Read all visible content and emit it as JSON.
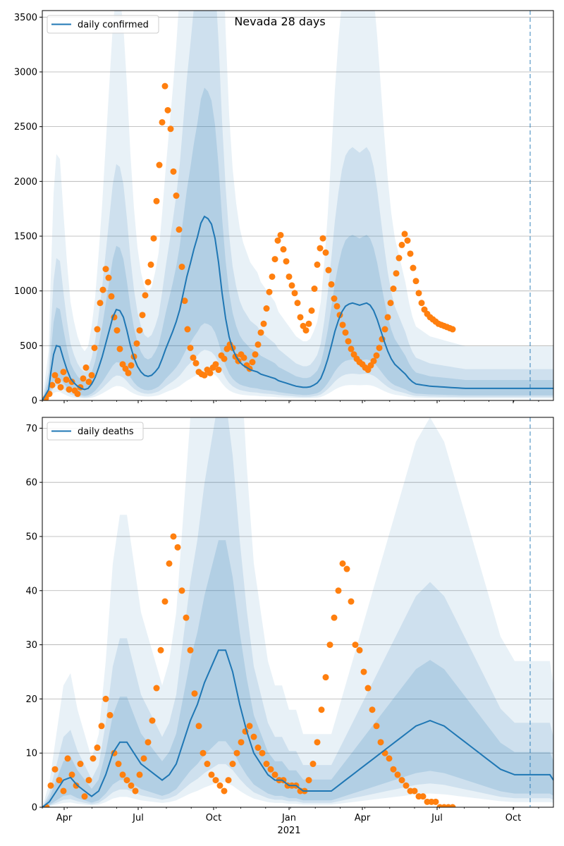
{
  "chart_data": [
    {
      "type": "line",
      "title": "Nevada 28 days",
      "legend": {
        "label": "daily confirmed",
        "position": "top-left"
      },
      "ylim": [
        0,
        3560
      ],
      "yticks": [
        0,
        500,
        1000,
        1500,
        2000,
        2500,
        3000,
        3500
      ],
      "grid": true,
      "colors": {
        "line": "#1f77b4",
        "points": "#ff7f0e",
        "band": "#1f77b4"
      },
      "series": [
        {
          "name": "daily confirmed",
          "x": [
            0,
            9,
            12,
            16,
            20,
            25,
            30,
            35,
            40,
            45,
            50,
            55,
            60,
            65,
            70,
            75,
            80,
            85,
            90,
            95,
            100,
            105,
            110,
            115,
            120,
            125,
            130,
            135,
            140,
            145,
            150,
            155,
            160,
            165,
            170,
            175,
            180,
            185,
            190,
            195,
            200,
            205,
            210,
            215,
            220,
            225,
            230,
            235,
            240,
            245,
            250,
            255,
            260,
            265,
            270,
            275,
            280,
            285,
            290,
            295,
            300,
            305,
            310,
            315,
            320,
            325,
            330,
            335,
            340,
            345,
            350,
            355,
            360,
            365,
            370,
            375,
            380,
            385,
            390,
            395,
            400,
            405,
            410,
            415,
            420,
            425,
            430,
            435,
            440,
            445,
            450,
            455,
            460,
            465,
            470,
            475,
            480,
            485,
            490,
            495,
            500,
            505,
            510,
            515,
            520,
            525,
            530,
            535,
            540,
            545,
            550,
            555,
            560,
            565,
            570,
            575,
            580,
            585,
            590,
            595,
            600,
            605,
            610,
            615,
            620,
            625,
            630,
            635,
            640,
            645,
            650,
            655,
            660,
            665,
            670,
            675,
            680,
            685,
            690,
            695,
            700,
            705,
            710,
            715,
            720,
            725
          ],
          "values": [
            0,
            100,
            250,
            420,
            500,
            490,
            380,
            280,
            200,
            160,
            130,
            110,
            100,
            110,
            150,
            210,
            300,
            400,
            520,
            640,
            760,
            830,
            820,
            760,
            640,
            500,
            390,
            310,
            260,
            230,
            220,
            230,
            260,
            300,
            380,
            470,
            550,
            630,
            720,
            830,
            980,
            1130,
            1250,
            1380,
            1490,
            1620,
            1680,
            1660,
            1610,
            1480,
            1260,
            980,
            750,
            580,
            470,
            400,
            350,
            320,
            300,
            280,
            270,
            260,
            240,
            230,
            220,
            210,
            200,
            180,
            170,
            160,
            150,
            140,
            130,
            125,
            120,
            120,
            125,
            140,
            160,
            200,
            280,
            380,
            500,
            630,
            730,
            810,
            860,
            880,
            890,
            880,
            870,
            880,
            890,
            870,
            820,
            740,
            640,
            540,
            450,
            380,
            330,
            300,
            270,
            240,
            200,
            170,
            150,
            145,
            140,
            135,
            130,
            128,
            126,
            124,
            122,
            120,
            118,
            116,
            114,
            112,
            110,
            110,
            110,
            110,
            110,
            110,
            110,
            110,
            110,
            110,
            110,
            110,
            110,
            110,
            110,
            110,
            110,
            110,
            110,
            110,
            110,
            110,
            110,
            110,
            110,
            110
          ]
        },
        {
          "name": "",
          "type": "scatter",
          "x": [
            5,
            10,
            14,
            18,
            22,
            26,
            30,
            34,
            38,
            42,
            46,
            50,
            54,
            58,
            62,
            66,
            70,
            74,
            78,
            82,
            86,
            90,
            94,
            98,
            102,
            106,
            110,
            114,
            118,
            122,
            126,
            130,
            134,
            138,
            142,
            146,
            150,
            154,
            158,
            162,
            166,
            170,
            174,
            178,
            182,
            186,
            190,
            194,
            198,
            202,
            206,
            210,
            214,
            218,
            222,
            226,
            230,
            234,
            238,
            242,
            246,
            250,
            254,
            258,
            262,
            266,
            270,
            274,
            278,
            282,
            286,
            290,
            294,
            298,
            302,
            306,
            310,
            314,
            318,
            322,
            326,
            330,
            334,
            338,
            342,
            346,
            350,
            354,
            358,
            362,
            366,
            370,
            374,
            378,
            382,
            386,
            390,
            394,
            398,
            402,
            406,
            410,
            414,
            418,
            422,
            426,
            430,
            434,
            438,
            442,
            446,
            450,
            454,
            458,
            462,
            466,
            470,
            474,
            478,
            482,
            486,
            490,
            494,
            498,
            502,
            506,
            510,
            514,
            518,
            522,
            526,
            530,
            534,
            538,
            542,
            546,
            550,
            554,
            558,
            562,
            566,
            570,
            574,
            578,
            582
          ],
          "values": [
            20,
            60,
            140,
            230,
            180,
            120,
            260,
            190,
            100,
            170,
            90,
            60,
            120,
            200,
            300,
            170,
            230,
            480,
            650,
            890,
            1010,
            1200,
            1120,
            950,
            760,
            640,
            470,
            330,
            290,
            250,
            320,
            400,
            520,
            640,
            780,
            960,
            1080,
            1240,
            1480,
            1820,
            2150,
            2540,
            2870,
            2650,
            2480,
            2090,
            1870,
            1560,
            1220,
            910,
            650,
            480,
            390,
            340,
            260,
            240,
            230,
            280,
            250,
            300,
            330,
            280,
            410,
            380,
            470,
            510,
            480,
            400,
            360,
            420,
            390,
            320,
            290,
            350,
            420,
            510,
            620,
            700,
            840,
            990,
            1130,
            1290,
            1460,
            1510,
            1380,
            1270,
            1130,
            1050,
            980,
            890,
            760,
            680,
            640,
            700,
            820,
            1020,
            1240,
            1390,
            1480,
            1350,
            1190,
            1060,
            930,
            860,
            780,
            690,
            620,
            540,
            470,
            420,
            380,
            350,
            330,
            300,
            280,
            320,
            360,
            410,
            480,
            560,
            650,
            760,
            890,
            1020,
            1160,
            1300,
            1420,
            1520,
            1460,
            1340,
            1210,
            1090,
            980,
            890,
            830,
            790,
            760,
            740,
            720,
            700,
            690,
            680,
            670,
            660,
            650
          ]
        }
      ]
    },
    {
      "type": "line",
      "legend": {
        "label": "daily deaths",
        "position": "top-left"
      },
      "ylim": [
        0,
        72
      ],
      "yticks": [
        0,
        10,
        20,
        30,
        40,
        50,
        60,
        70
      ],
      "grid": true,
      "xlabel": "2021",
      "xticks": [
        "Apr",
        "Jul",
        "Oct",
        "Jan",
        "Apr",
        "Jul",
        "Oct"
      ],
      "colors": {
        "line": "#1f77b4",
        "points": "#ff7f0e",
        "band": "#1f77b4"
      },
      "series": [
        {
          "name": "daily deaths",
          "x": [
            0,
            10,
            20,
            30,
            40,
            50,
            60,
            70,
            80,
            90,
            100,
            110,
            120,
            130,
            140,
            150,
            160,
            170,
            180,
            190,
            200,
            210,
            220,
            230,
            240,
            250,
            260,
            270,
            280,
            290,
            300,
            310,
            320,
            330,
            340,
            350,
            360,
            370,
            380,
            390,
            400,
            410,
            420,
            430,
            440,
            450,
            460,
            470,
            480,
            490,
            500,
            510,
            520,
            530,
            540,
            550,
            560,
            570,
            580,
            590,
            600,
            610,
            620,
            630,
            640,
            650,
            660,
            670,
            680,
            690,
            700,
            710,
            720,
            725
          ],
          "values": [
            0,
            1,
            3,
            5,
            5.5,
            4,
            3,
            2,
            3,
            6,
            10,
            12,
            12,
            10,
            8,
            7,
            6,
            5,
            6,
            8,
            12,
            16,
            19,
            23,
            26,
            29,
            29,
            25,
            19,
            14,
            10,
            8,
            6,
            5,
            5,
            4,
            4,
            3,
            3,
            3,
            3,
            3,
            4,
            5,
            6,
            7,
            8,
            9,
            10,
            11,
            12,
            13,
            14,
            15,
            15.5,
            16,
            15.5,
            15,
            14,
            13,
            12,
            11,
            10,
            9,
            8,
            7,
            6.5,
            6,
            6,
            6,
            6,
            6,
            6,
            5
          ]
        },
        {
          "name": "",
          "type": "scatter",
          "x": [
            6,
            12,
            18,
            24,
            30,
            36,
            42,
            48,
            54,
            60,
            66,
            72,
            78,
            84,
            90,
            96,
            102,
            108,
            114,
            120,
            126,
            132,
            138,
            144,
            150,
            156,
            162,
            168,
            174,
            180,
            186,
            192,
            198,
            204,
            210,
            216,
            222,
            228,
            234,
            240,
            246,
            252,
            258,
            264,
            270,
            276,
            282,
            288,
            294,
            300,
            306,
            312,
            318,
            324,
            330,
            336,
            342,
            348,
            354,
            360,
            366,
            372,
            378,
            384,
            390,
            396,
            402,
            408,
            414,
            420,
            426,
            432,
            438,
            444,
            450,
            456,
            462,
            468,
            474,
            480,
            486,
            492,
            498,
            504,
            510,
            516,
            522,
            528,
            534,
            540,
            546,
            552,
            558,
            564,
            570,
            576,
            582
          ],
          "values": [
            0,
            4,
            7,
            5,
            3,
            9,
            6,
            4,
            8,
            2,
            5,
            9,
            11,
            15,
            20,
            17,
            10,
            8,
            6,
            5,
            4,
            3,
            6,
            9,
            12,
            16,
            22,
            29,
            38,
            45,
            50,
            48,
            40,
            35,
            29,
            21,
            15,
            10,
            8,
            6,
            5,
            4,
            3,
            5,
            8,
            10,
            12,
            14,
            15,
            13,
            11,
            10,
            8,
            7,
            6,
            5,
            5,
            4,
            4,
            4,
            3,
            3,
            5,
            8,
            12,
            18,
            24,
            30,
            35,
            40,
            45,
            44,
            38,
            30,
            29,
            25,
            22,
            18,
            15,
            12,
            10,
            9,
            7,
            6,
            5,
            4,
            3,
            3,
            2,
            2,
            1,
            1,
            1,
            0,
            0,
            0,
            0
          ]
        }
      ]
    }
  ]
}
